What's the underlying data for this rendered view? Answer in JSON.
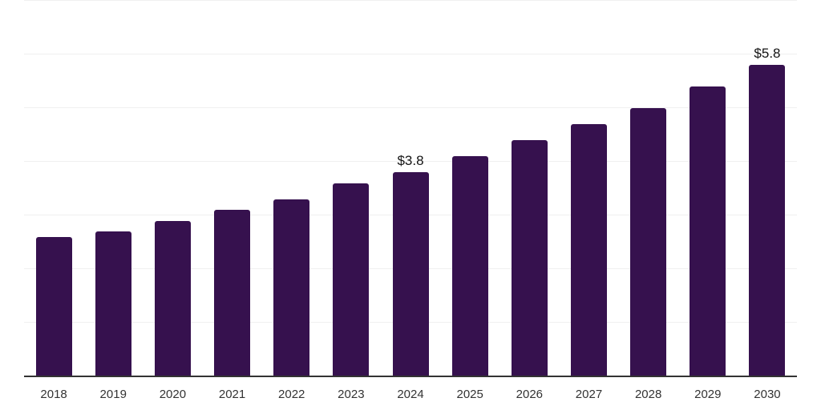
{
  "chart_data": {
    "type": "bar",
    "title": "",
    "xlabel": "",
    "ylabel": "",
    "categories": [
      "2018",
      "2019",
      "2020",
      "2021",
      "2022",
      "2023",
      "2024",
      "2025",
      "2026",
      "2027",
      "2028",
      "2029",
      "2030"
    ],
    "values": [
      2.6,
      2.7,
      2.9,
      3.1,
      3.3,
      3.6,
      3.8,
      4.1,
      4.4,
      4.7,
      5.0,
      5.4,
      5.8
    ],
    "data_labels": [
      "",
      "",
      "",
      "",
      "",
      "",
      "$3.8",
      "",
      "",
      "",
      "",
      "",
      "$5.8"
    ],
    "ylim": [
      0,
      7
    ],
    "grid": true,
    "grid_step": 1,
    "legend": "none",
    "colors": {
      "bar": "#36114E",
      "grid": "#f0f0f0",
      "axis": "#333333",
      "data_label": "#141414",
      "tick_label": "#333333",
      "background": "#ffffff"
    }
  }
}
